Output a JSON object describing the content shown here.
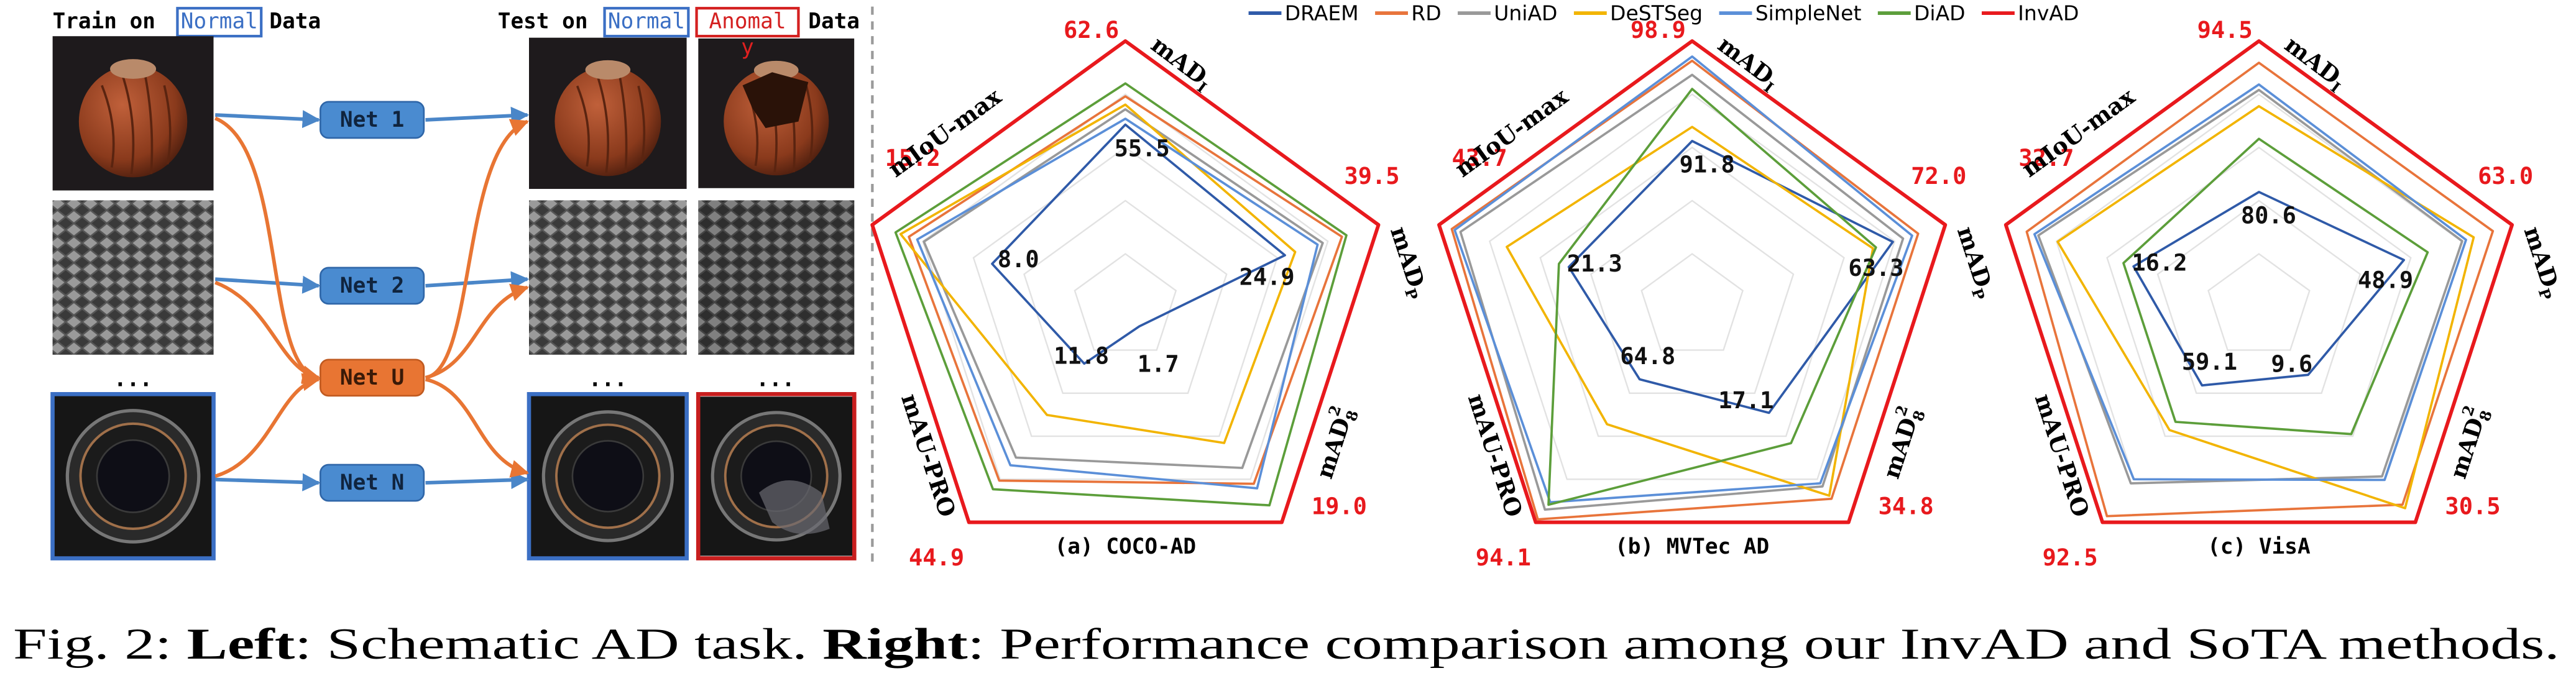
{
  "schematic": {
    "train": {
      "prefix": "Train on",
      "tag": "Normal",
      "suffix": "Data"
    },
    "test": {
      "prefix": "Test on",
      "tag_normal": "Normal",
      "tag_anomal": "Anomal",
      "suffix": "Data",
      "anomaly_mark": "y"
    },
    "nets": [
      "Net 1",
      "Net 2",
      "Net U",
      "Net N"
    ],
    "ellipsis": "..."
  },
  "chart_data": [
    {
      "type": "radar",
      "title": "(a) COCO-AD",
      "axes": [
        {
          "label": "mAD",
          "sub": "I",
          "lim": [
            40,
            62.6
          ]
        },
        {
          "label": "mAD",
          "sub": "P",
          "lim": [
            0,
            39.5
          ]
        },
        {
          "label": "mAD",
          "sub": "8",
          "sup": "2",
          "lim": [
            0,
            19
          ]
        },
        {
          "label": "mAU-PRO",
          "lim": [
            0,
            44.9
          ]
        },
        {
          "label": "mIoU-max",
          "lim": [
            0,
            15.2
          ]
        }
      ],
      "series": [
        {
          "name": "DRAEM",
          "color": "#2f5aa8",
          "values": [
            55.5,
            24.9,
            1.7,
            11.8,
            8
          ],
          "value_labels": [
            "55.5",
            "24.9",
            "1.7",
            "11.8",
            "8.0"
          ],
          "label_color": "#111111"
        },
        {
          "name": "RD",
          "color": "#e8743b",
          "values": [
            57.9,
            33.8,
            15.6,
            36.2,
            13
          ]
        },
        {
          "name": "UniAD",
          "color": "#999999",
          "values": [
            56.8,
            30.8,
            14.2,
            31.4,
            12.1
          ]
        },
        {
          "name": "DeSTSeg",
          "color": "#f2b400",
          "values": [
            57.2,
            26.5,
            12,
            22.5,
            13.5
          ]
        },
        {
          "name": "SimpleNet",
          "color": "#5b8fd8",
          "values": [
            56,
            30,
            16,
            33,
            12.5
          ]
        },
        {
          "name": "DiAD",
          "color": "#5c9e3a",
          "values": [
            59,
            34.5,
            17.5,
            38,
            13.8
          ]
        },
        {
          "name": "InvAD",
          "color": "#e8191d",
          "values": [
            62.6,
            39.5,
            19,
            44.9,
            15.2
          ],
          "value_labels": [
            "62.6",
            "39.5",
            "19.0",
            "44.9",
            "15.2"
          ],
          "label_color": "#e8191d"
        }
      ]
    },
    {
      "type": "radar",
      "title": "(b) MVTec AD",
      "axes": [
        {
          "label": "mAD",
          "sub": "I",
          "lim": [
            80,
            98.9
          ]
        },
        {
          "label": "mAD",
          "sub": "P",
          "lim": [
            30,
            72
          ]
        },
        {
          "label": "mAD",
          "sub": "8",
          "sup": "2",
          "lim": [
            0,
            34.8
          ]
        },
        {
          "label": "mAU-PRO",
          "lim": [
            50,
            94.1
          ]
        },
        {
          "label": "mIoU-max",
          "lim": [
            0,
            43.7
          ]
        }
      ],
      "series": [
        {
          "name": "DRAEM",
          "color": "#2f5aa8",
          "values": [
            91.8,
            63.3,
            17.1,
            64.8,
            21.3
          ],
          "value_labels": [
            "91.8",
            "63.3",
            "17.1",
            "64.8",
            "21.3"
          ],
          "label_color": "#111111"
        },
        {
          "name": "RD",
          "color": "#e8743b",
          "values": [
            97.5,
            67.5,
            31,
            93.5,
            41.5
          ]
        },
        {
          "name": "UniAD",
          "color": "#999999",
          "values": [
            96.5,
            65,
            29,
            91.5,
            40
          ]
        },
        {
          "name": "DeSTSeg",
          "color": "#f2b400",
          "values": [
            92.8,
            60,
            30.5,
            74,
            32
          ]
        },
        {
          "name": "SimpleNet",
          "color": "#5b8fd8",
          "values": [
            97.8,
            66.5,
            28.5,
            90,
            41
          ]
        },
        {
          "name": "DiAD",
          "color": "#5c9e3a",
          "values": [
            95.5,
            60.5,
            22,
            90.5,
            23
          ]
        },
        {
          "name": "InvAD",
          "color": "#e8191d",
          "values": [
            98.9,
            72,
            34.8,
            94.1,
            43.7
          ],
          "value_labels": [
            "98.9",
            "72.0",
            "34.8",
            "94.1",
            "43.7"
          ],
          "label_color": "#e8191d"
        }
      ]
    },
    {
      "type": "radar",
      "title": "(c) VisA",
      "axes": [
        {
          "label": "mAD",
          "sub": "I",
          "lim": [
            70,
            94.5
          ]
        },
        {
          "label": "mAD",
          "sub": "P",
          "lim": [
            30,
            63
          ]
        },
        {
          "label": "mAD",
          "sub": "8",
          "sup": "2",
          "lim": [
            0,
            30.5
          ]
        },
        {
          "label": "mAU-PRO",
          "lim": [
            40,
            92.5
          ]
        },
        {
          "label": "mIoU-max",
          "lim": [
            0,
            32.7
          ]
        }
      ],
      "series": [
        {
          "name": "DRAEM",
          "color": "#2f5aa8",
          "values": [
            80.6,
            48.9,
            9.6,
            59.1,
            16.2
          ],
          "value_labels": [
            "80.6",
            "48.9",
            "9.6",
            "59.1",
            "16.2"
          ],
          "label_color": "#111111"
        },
        {
          "name": "RD",
          "color": "#e8743b",
          "values": [
            92.5,
            60.5,
            28,
            91,
            30
          ]
        },
        {
          "name": "UniAD",
          "color": "#999999",
          "values": [
            90,
            56.5,
            24,
            83,
            28.5
          ]
        },
        {
          "name": "DeSTSeg",
          "color": "#f2b400",
          "values": [
            88.5,
            58,
            28.5,
            70,
            26
          ]
        },
        {
          "name": "SimpleNet",
          "color": "#5b8fd8",
          "values": [
            90.5,
            57,
            24.5,
            82,
            29
          ]
        },
        {
          "name": "DiAD",
          "color": "#5c9e3a",
          "values": [
            85.5,
            52,
            18,
            68,
            17.5
          ]
        },
        {
          "name": "InvAD",
          "color": "#e8191d",
          "values": [
            94.5,
            63,
            30.5,
            92.5,
            32.7
          ],
          "value_labels": [
            "94.5",
            "63.0",
            "30.5",
            "92.5",
            "32.7"
          ],
          "label_color": "#e8191d"
        }
      ]
    }
  ],
  "caption": {
    "label": "Fig. 2:",
    "left_bold": "Left",
    "left_text": ": Schematic AD task.",
    "right_bold": "Right",
    "right_text": ": Performance comparison among our InvAD and SoTA methods."
  }
}
